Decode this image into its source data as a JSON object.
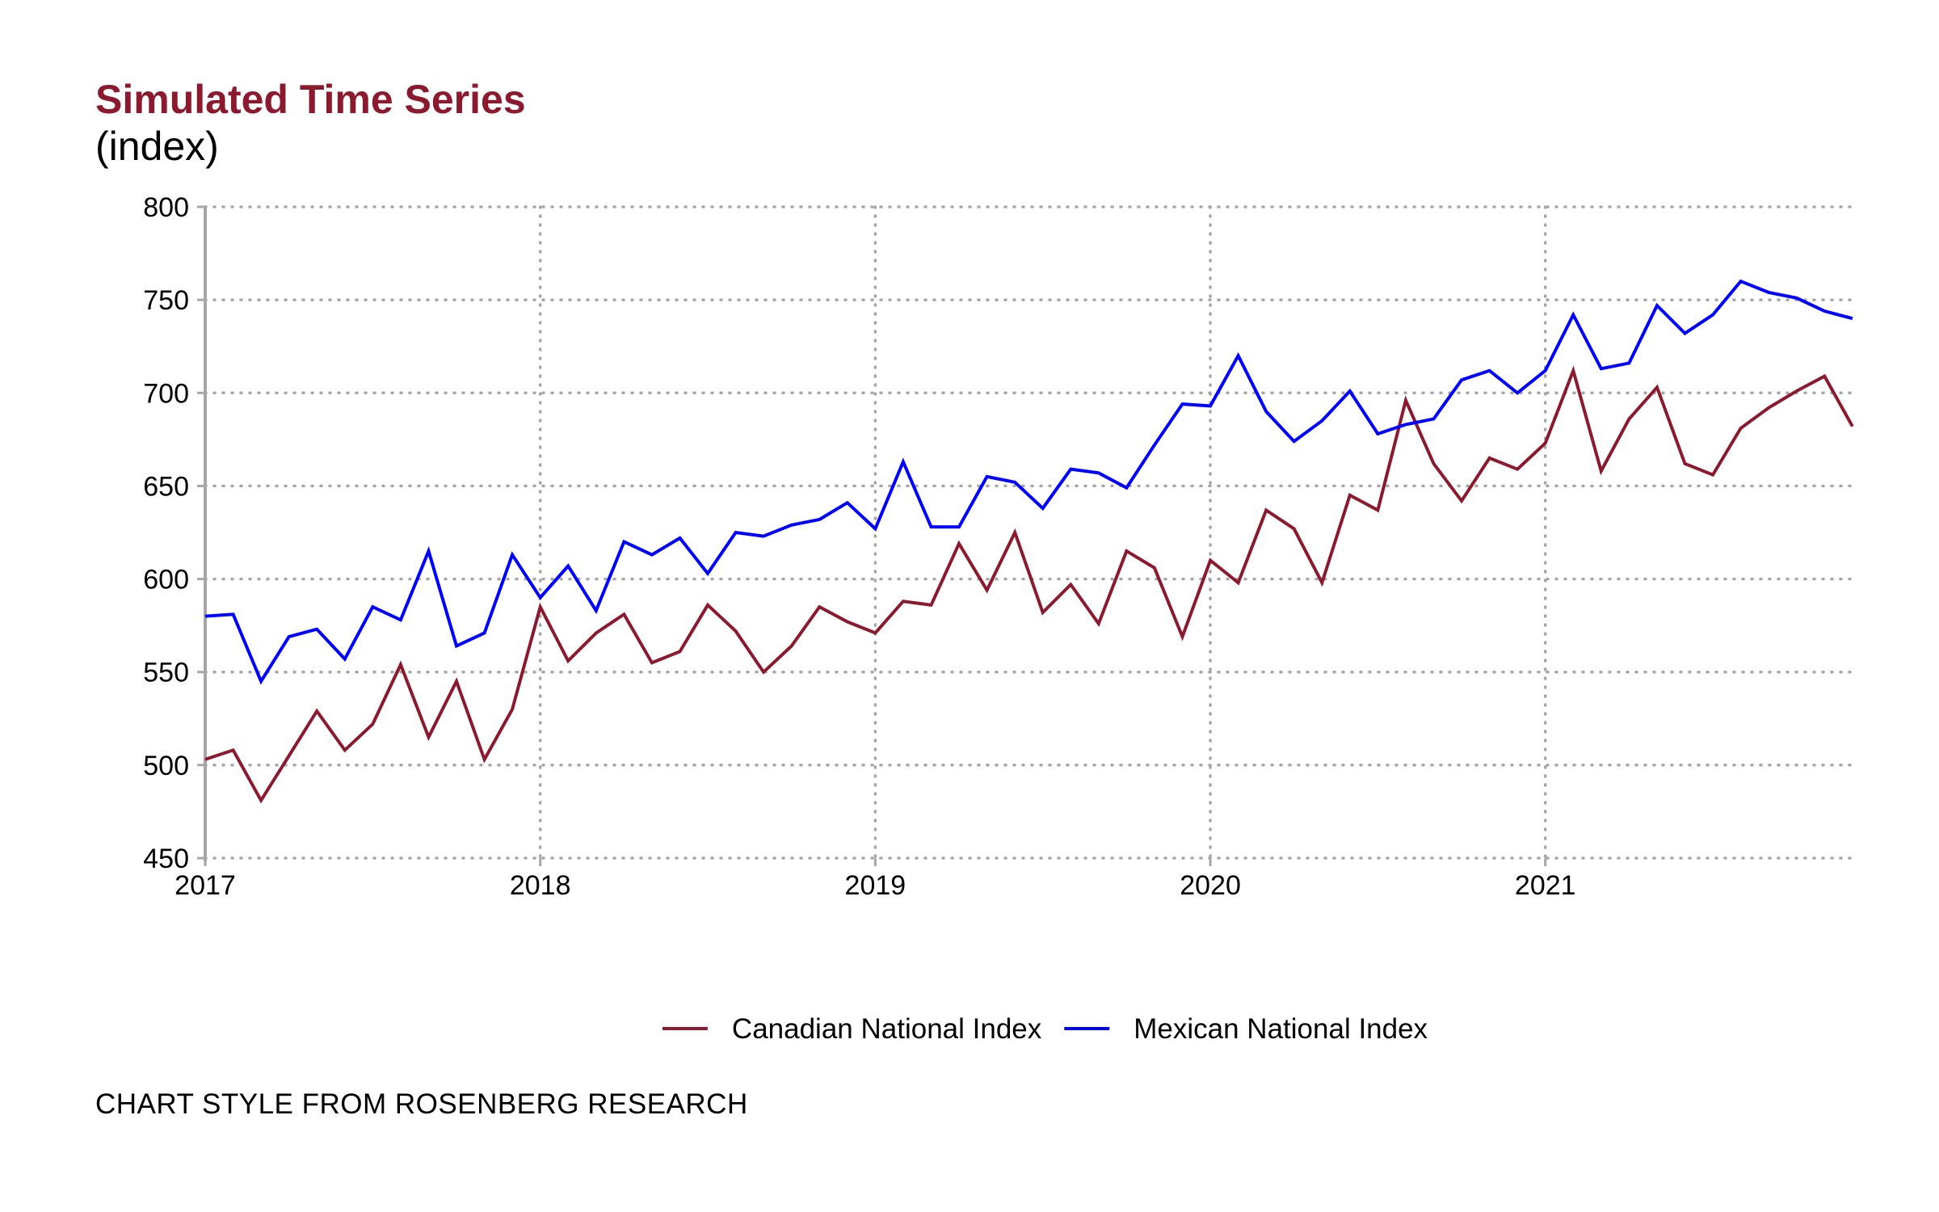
{
  "header": {
    "title": "Simulated Time Series",
    "subtitle": "(index)"
  },
  "caption": "CHART STYLE FROM ROSENBERG RESEARCH",
  "chart_data": {
    "type": "line",
    "title": "Simulated Time Series",
    "subtitle": "(index)",
    "xlabel": "",
    "ylabel": "",
    "x_start": "2017-01",
    "frequency": "monthly",
    "xlim": [
      2017.0,
      2021.917
    ],
    "ylim": [
      450,
      800
    ],
    "x_ticks": [
      2017,
      2018,
      2019,
      2020,
      2021
    ],
    "x_tick_labels": [
      "2017",
      "2018",
      "2019",
      "2020",
      "2021"
    ],
    "y_ticks": [
      450,
      500,
      550,
      600,
      650,
      700,
      750,
      800
    ],
    "y_tick_labels": [
      "450",
      "500",
      "550",
      "600",
      "650",
      "700",
      "750",
      "800"
    ],
    "grid": "dotted",
    "legend_position": "bottom",
    "series": [
      {
        "name": "Canadian National Index",
        "color": "#8b1a2f",
        "values": [
          503,
          508,
          481,
          505,
          529,
          508,
          522,
          554,
          515,
          545,
          503,
          530,
          585,
          556,
          571,
          581,
          555,
          561,
          586,
          572,
          550,
          564,
          585,
          577,
          571,
          588,
          586,
          619,
          594,
          625,
          582,
          597,
          576,
          615,
          606,
          569,
          610,
          598,
          637,
          627,
          598,
          645,
          637,
          696,
          662,
          642,
          665,
          659,
          673,
          712,
          658,
          686,
          703,
          662,
          656,
          681,
          692,
          701,
          709,
          682
        ]
      },
      {
        "name": "Mexican National Index",
        "color": "#0000ff",
        "values": [
          580,
          581,
          545,
          569,
          573,
          557,
          585,
          578,
          615,
          564,
          571,
          613,
          590,
          607,
          583,
          620,
          613,
          622,
          603,
          625,
          623,
          629,
          632,
          641,
          627,
          663,
          628,
          628,
          655,
          652,
          638,
          659,
          657,
          649,
          672,
          694,
          693,
          720,
          690,
          674,
          685,
          701,
          678,
          683,
          686,
          707,
          712,
          700,
          712,
          742,
          713,
          716,
          747,
          732,
          742,
          760,
          754,
          751,
          744,
          740
        ]
      }
    ]
  }
}
